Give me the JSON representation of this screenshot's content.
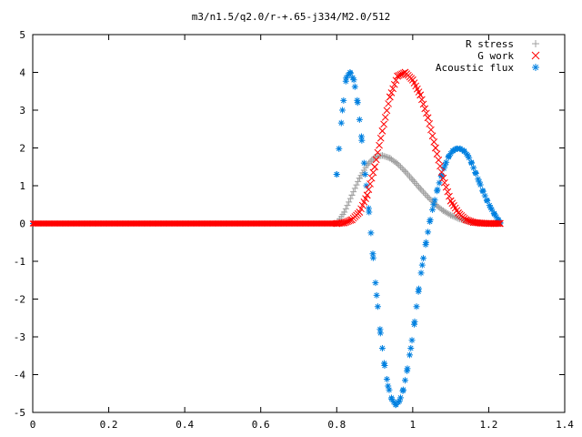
{
  "chart_data": {
    "type": "scatter",
    "title": "m3/n1.5/q2.0/r-+.65-j334/M2.0/512",
    "xlabel": "",
    "ylabel": "",
    "xlim": [
      0,
      1.4
    ],
    "ylim": [
      -5,
      5
    ],
    "x_ticks": [
      "0",
      "0.2",
      "0.4",
      "0.6",
      "0.8",
      "1",
      "1.2",
      "1.4"
    ],
    "y_ticks": [
      "-5",
      "-4",
      "-3",
      "-2",
      "-1",
      "0",
      "1",
      "2",
      "3",
      "4",
      "5"
    ],
    "grid": false,
    "legend_position": "top-right",
    "series": [
      {
        "name": "R stress",
        "marker": "plus",
        "color": "#a0a0a0",
        "x": [
          0.8,
          0.82,
          0.84,
          0.86,
          0.88,
          0.9,
          0.92,
          0.94,
          0.96,
          0.98,
          1.0,
          1.02,
          1.04,
          1.06,
          1.08,
          1.1,
          1.12,
          1.14,
          1.16,
          1.18,
          1.2,
          1.22,
          1.23
        ],
        "y": [
          0.0,
          0.3,
          0.75,
          1.2,
          1.55,
          1.76,
          1.8,
          1.73,
          1.58,
          1.38,
          1.15,
          0.92,
          0.7,
          0.5,
          0.34,
          0.22,
          0.13,
          0.07,
          0.03,
          0.01,
          0.0,
          0.0,
          0.0
        ]
      },
      {
        "name": "G work",
        "marker": "cross",
        "color": "#ff0000",
        "x": [
          0.8,
          0.82,
          0.84,
          0.86,
          0.88,
          0.9,
          0.92,
          0.94,
          0.96,
          0.98,
          1.0,
          1.02,
          1.04,
          1.06,
          1.08,
          1.1,
          1.12,
          1.14,
          1.16,
          1.18,
          1.2,
          1.22,
          1.23
        ],
        "y": [
          0.0,
          0.02,
          0.1,
          0.3,
          0.75,
          1.5,
          2.45,
          3.35,
          3.9,
          4.0,
          3.8,
          3.4,
          2.8,
          2.0,
          1.2,
          0.6,
          0.28,
          0.1,
          0.03,
          0.01,
          0.0,
          0.0,
          0.0
        ]
      },
      {
        "name": "Acoustic flux",
        "marker": "star",
        "color": "#0080e0",
        "x": [
          0.8,
          0.815,
          0.825,
          0.835,
          0.845,
          0.855,
          0.865,
          0.875,
          0.885,
          0.895,
          0.905,
          0.915,
          0.925,
          0.935,
          0.945,
          0.955,
          0.965,
          0.975,
          0.985,
          0.995,
          1.005,
          1.015,
          1.025,
          1.035,
          1.045,
          1.055,
          1.065,
          1.075,
          1.085,
          1.095,
          1.105,
          1.115,
          1.125,
          1.135,
          1.145,
          1.155,
          1.165,
          1.175,
          1.185,
          1.195,
          1.205,
          1.215,
          1.225,
          1.23
        ],
        "y": [
          1.3,
          3.0,
          3.85,
          4.0,
          3.8,
          3.2,
          2.3,
          1.3,
          0.3,
          -0.8,
          -1.9,
          -2.9,
          -3.7,
          -4.3,
          -4.65,
          -4.8,
          -4.7,
          -4.4,
          -3.9,
          -3.3,
          -2.6,
          -1.8,
          -1.1,
          -0.5,
          0.05,
          0.5,
          0.9,
          1.25,
          1.55,
          1.78,
          1.92,
          1.98,
          1.98,
          1.92,
          1.8,
          1.6,
          1.35,
          1.1,
          0.85,
          0.62,
          0.42,
          0.25,
          0.1,
          0.02
        ]
      }
    ]
  }
}
